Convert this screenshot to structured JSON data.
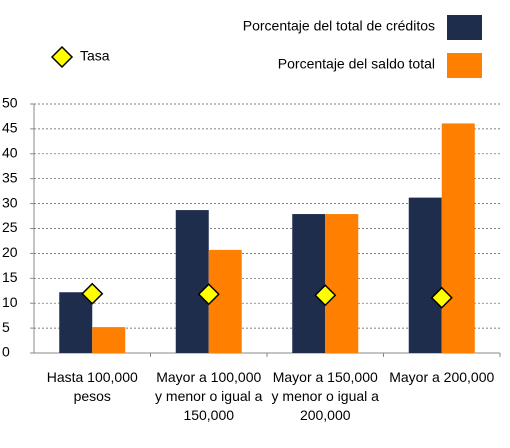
{
  "chart_data": {
    "type": "bar",
    "categories": [
      "Hasta 100,000 pesos",
      "Mayor a 100,000 y menor o igual a 150,000",
      "Mayor a 150,000 y menor o igual a 200,000",
      "Mayor a 200,000"
    ],
    "series": [
      {
        "name": "Porcentaje del total de créditos",
        "color": "#1f2d4d",
        "values": [
          12.2,
          28.7,
          27.9,
          31.2
        ]
      },
      {
        "name": "Porcentaje del saldo total",
        "color": "#ff8000",
        "values": [
          5.2,
          20.7,
          27.9,
          46.1
        ]
      },
      {
        "name": "Tasa",
        "color": "#ffff00",
        "marker": "diamond",
        "values": [
          11.9,
          11.8,
          11.6,
          11.1
        ]
      }
    ],
    "ylim": [
      0,
      50
    ],
    "yticks": [
      0,
      5,
      10,
      15,
      20,
      25,
      30,
      35,
      40,
      45,
      50
    ],
    "grid": true
  }
}
